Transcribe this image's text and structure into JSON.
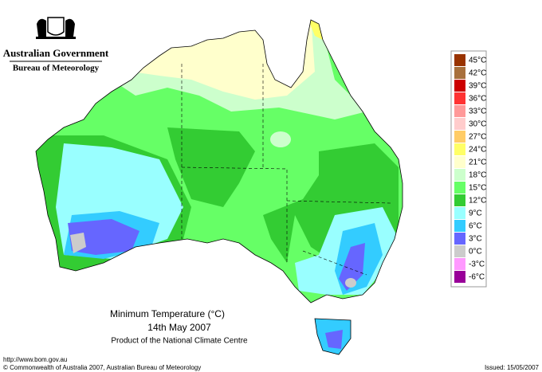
{
  "header": {
    "government": "Australian Government",
    "bureau": "Bureau of Meteorology"
  },
  "title": {
    "main": "Minimum Temperature (°C)",
    "date": "14th May 2007",
    "product": "Product of the National Climate Centre"
  },
  "legend": {
    "items": [
      {
        "label": "45°C",
        "color": "#993300"
      },
      {
        "label": "42°C",
        "color": "#a8703c"
      },
      {
        "label": "39°C",
        "color": "#cc0000"
      },
      {
        "label": "36°C",
        "color": "#ff3333"
      },
      {
        "label": "33°C",
        "color": "#ff9999"
      },
      {
        "label": "30°C",
        "color": "#ffcccc"
      },
      {
        "label": "27°C",
        "color": "#ffcc66"
      },
      {
        "label": "24°C",
        "color": "#ffff66"
      },
      {
        "label": "21°C",
        "color": "#ffffcc"
      },
      {
        "label": "18°C",
        "color": "#ccffcc"
      },
      {
        "label": "15°C",
        "color": "#66ff66"
      },
      {
        "label": "12°C",
        "color": "#33cc33"
      },
      {
        "label": "9°C",
        "color": "#99ffff"
      },
      {
        "label": "6°C",
        "color": "#33ccff"
      },
      {
        "label": "3°C",
        "color": "#6666ff"
      },
      {
        "label": "0°C",
        "color": "#cccccc"
      },
      {
        "label": "-3°C",
        "color": "#ff99ff"
      },
      {
        "label": "-6°C",
        "color": "#990099"
      }
    ]
  },
  "footer": {
    "url": "http://www.bom.gov.au",
    "copyright": "© Commonwealth of Australia 2007, Australian Bureau of Meteorology",
    "issued": "Issued: 15/05/2007"
  }
}
